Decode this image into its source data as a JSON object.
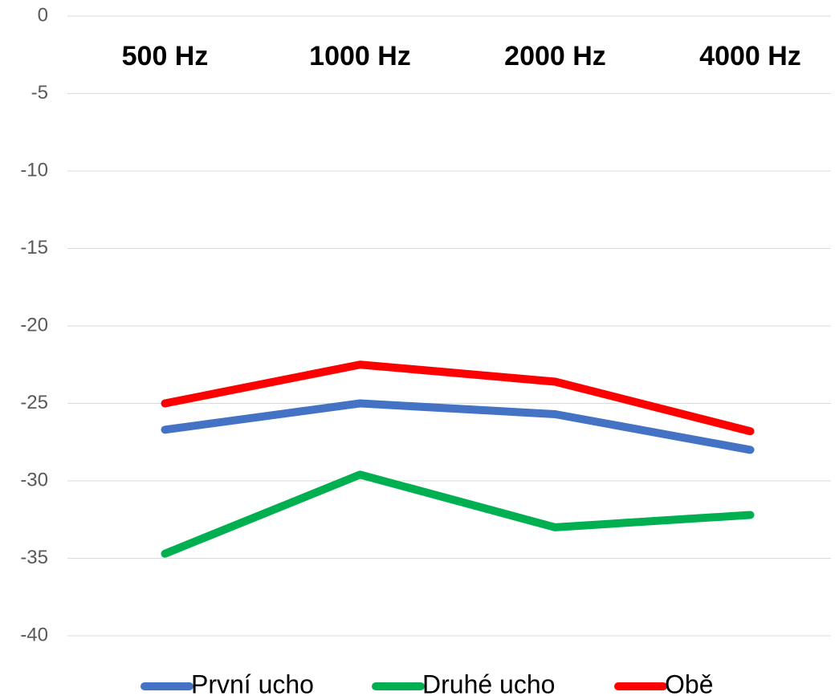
{
  "chart_data": {
    "type": "line",
    "categories": [
      "500 Hz",
      "1000 Hz",
      "2000 Hz",
      "4000 Hz"
    ],
    "series": [
      {
        "name": "První ucho",
        "color": "#4472c4",
        "values": [
          -26.7,
          -25.0,
          -25.7,
          -28.0
        ]
      },
      {
        "name": "Druhé ucho",
        "color": "#00b050",
        "values": [
          -34.7,
          -29.6,
          -33.0,
          -32.2
        ]
      },
      {
        "name": "Obě",
        "color": "#ff0000",
        "values": [
          -25.0,
          -22.5,
          -23.6,
          -26.8
        ]
      }
    ],
    "ylim": [
      -40,
      0
    ],
    "yticks": [
      0,
      -5,
      -10,
      -15,
      -20,
      -25,
      -30,
      -35,
      -40
    ],
    "grid": true,
    "legend": "bottom"
  }
}
